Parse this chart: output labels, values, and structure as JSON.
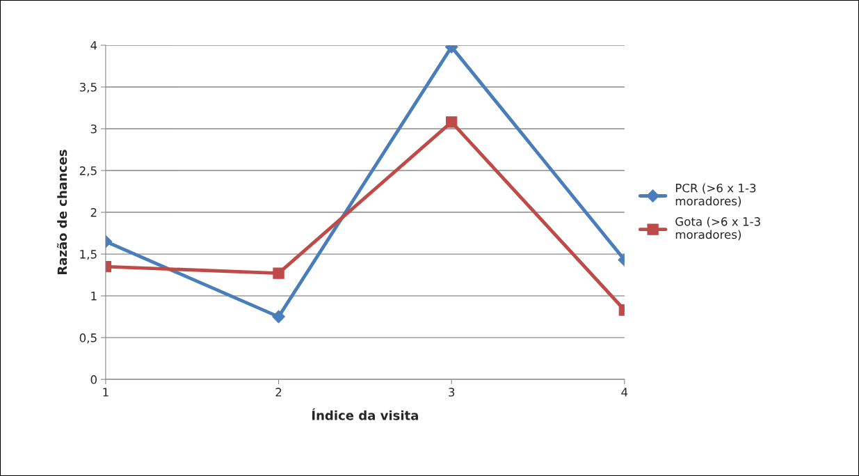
{
  "chart_data": {
    "type": "line",
    "xlabel": "Índice da visita",
    "ylabel": "Razão de chances",
    "categories": [
      "1",
      "2",
      "3",
      "4"
    ],
    "series": [
      {
        "name": "PCR (>6 x 1-3\nmoradores)",
        "color": "#4a7ebb",
        "marker": "diamond",
        "values": [
          1.65,
          0.75,
          3.98,
          1.43
        ]
      },
      {
        "name": "Gota (>6 x 1-3\nmoradores)",
        "color": "#be4b48",
        "marker": "square",
        "values": [
          1.35,
          1.27,
          3.08,
          0.83
        ]
      }
    ],
    "ylim": [
      0,
      4
    ],
    "yticks": [
      0,
      {
        "value": 0.5,
        "label": "0,5"
      },
      1,
      {
        "value": 1.5,
        "label": "1,5"
      },
      2,
      {
        "value": 2.5,
        "label": "2,5"
      },
      3,
      {
        "value": 3.5,
        "label": "3,5"
      },
      4
    ],
    "grid": "y",
    "legend": "right",
    "line_style": "solid"
  }
}
